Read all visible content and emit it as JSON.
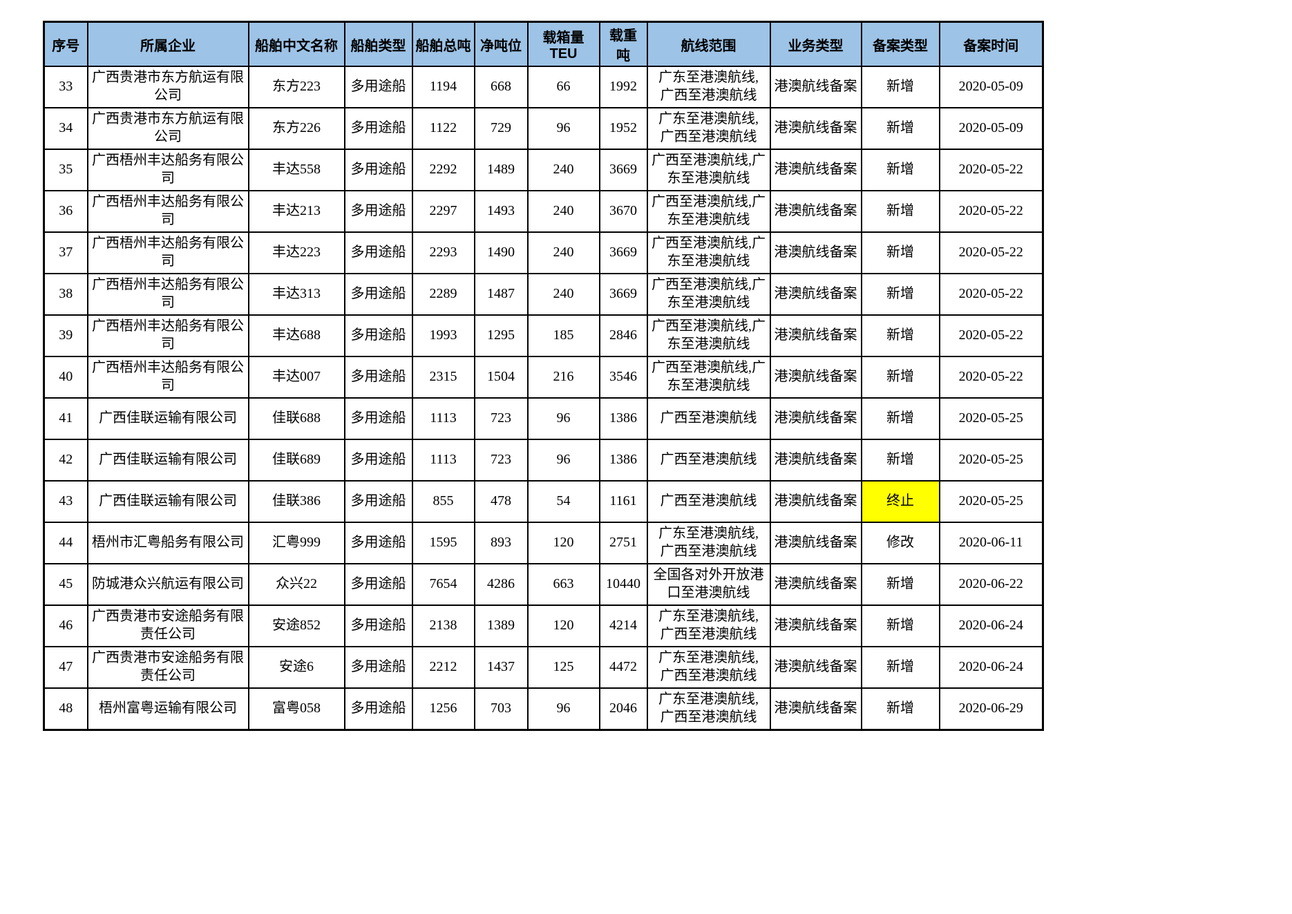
{
  "colors": {
    "header_bg": "#9DC3E6",
    "highlight": "#FFFF00",
    "border": "#000000",
    "text": "#000000"
  },
  "table": {
    "columns": [
      {
        "key": "seq",
        "label": "序号"
      },
      {
        "key": "company",
        "label": "所属企业"
      },
      {
        "key": "ship_name",
        "label": "船舶中文名称"
      },
      {
        "key": "ship_type",
        "label": "船舶类型"
      },
      {
        "key": "gross_tonnage",
        "label": "船舶总吨"
      },
      {
        "key": "net_tonnage",
        "label": "净吨位"
      },
      {
        "key": "teu",
        "label": "载箱量TEU"
      },
      {
        "key": "deadweight",
        "label": "载重吨"
      },
      {
        "key": "route",
        "label": "航线范围"
      },
      {
        "key": "business_type",
        "label": "业务类型"
      },
      {
        "key": "filing_type",
        "label": "备案类型"
      },
      {
        "key": "filing_date",
        "label": "备案时间"
      }
    ],
    "rows": [
      {
        "seq": "33",
        "company": "广西贵港市东方航运有限\n公司",
        "ship_name": "东方223",
        "ship_type": "多用途船",
        "gross_tonnage": "1194",
        "net_tonnage": "668",
        "teu": "66",
        "deadweight": "1992",
        "route": "广东至港澳航线,\n广西至港澳航线",
        "business_type": "港澳航线备案",
        "filing_type": "新增",
        "filing_type_highlight": false,
        "filing_date": "2020-05-09"
      },
      {
        "seq": "34",
        "company": "广西贵港市东方航运有限\n公司",
        "ship_name": "东方226",
        "ship_type": "多用途船",
        "gross_tonnage": "1122",
        "net_tonnage": "729",
        "teu": "96",
        "deadweight": "1952",
        "route": "广东至港澳航线,\n广西至港澳航线",
        "business_type": "港澳航线备案",
        "filing_type": "新增",
        "filing_type_highlight": false,
        "filing_date": "2020-05-09"
      },
      {
        "seq": "35",
        "company": "广西梧州丰达船务有限公\n司",
        "ship_name": "丰达558",
        "ship_type": "多用途船",
        "gross_tonnage": "2292",
        "net_tonnage": "1489",
        "teu": "240",
        "deadweight": "3669",
        "route": "广西至港澳航线,广\n东至港澳航线",
        "business_type": "港澳航线备案",
        "filing_type": "新增",
        "filing_type_highlight": false,
        "filing_date": "2020-05-22"
      },
      {
        "seq": "36",
        "company": "广西梧州丰达船务有限公\n司",
        "ship_name": "丰达213",
        "ship_type": "多用途船",
        "gross_tonnage": "2297",
        "net_tonnage": "1493",
        "teu": "240",
        "deadweight": "3670",
        "route": "广西至港澳航线,广\n东至港澳航线",
        "business_type": "港澳航线备案",
        "filing_type": "新增",
        "filing_type_highlight": false,
        "filing_date": "2020-05-22"
      },
      {
        "seq": "37",
        "company": "广西梧州丰达船务有限公\n司",
        "ship_name": "丰达223",
        "ship_type": "多用途船",
        "gross_tonnage": "2293",
        "net_tonnage": "1490",
        "teu": "240",
        "deadweight": "3669",
        "route": "广西至港澳航线,广\n东至港澳航线",
        "business_type": "港澳航线备案",
        "filing_type": "新增",
        "filing_type_highlight": false,
        "filing_date": "2020-05-22"
      },
      {
        "seq": "38",
        "company": "广西梧州丰达船务有限公\n司",
        "ship_name": "丰达313",
        "ship_type": "多用途船",
        "gross_tonnage": "2289",
        "net_tonnage": "1487",
        "teu": "240",
        "deadweight": "3669",
        "route": "广西至港澳航线,广\n东至港澳航线",
        "business_type": "港澳航线备案",
        "filing_type": "新增",
        "filing_type_highlight": false,
        "filing_date": "2020-05-22"
      },
      {
        "seq": "39",
        "company": "广西梧州丰达船务有限公\n司",
        "ship_name": "丰达688",
        "ship_type": "多用途船",
        "gross_tonnage": "1993",
        "net_tonnage": "1295",
        "teu": "185",
        "deadweight": "2846",
        "route": "广西至港澳航线,广\n东至港澳航线",
        "business_type": "港澳航线备案",
        "filing_type": "新增",
        "filing_type_highlight": false,
        "filing_date": "2020-05-22"
      },
      {
        "seq": "40",
        "company": "广西梧州丰达船务有限公\n司",
        "ship_name": "丰达007",
        "ship_type": "多用途船",
        "gross_tonnage": "2315",
        "net_tonnage": "1504",
        "teu": "216",
        "deadweight": "3546",
        "route": "广西至港澳航线,广\n东至港澳航线",
        "business_type": "港澳航线备案",
        "filing_type": "新增",
        "filing_type_highlight": false,
        "filing_date": "2020-05-22"
      },
      {
        "seq": "41",
        "company": "广西佳联运输有限公司",
        "ship_name": "佳联688",
        "ship_type": "多用途船",
        "gross_tonnage": "1113",
        "net_tonnage": "723",
        "teu": "96",
        "deadweight": "1386",
        "route": "广西至港澳航线",
        "business_type": "港澳航线备案",
        "filing_type": "新增",
        "filing_type_highlight": false,
        "filing_date": "2020-05-25"
      },
      {
        "seq": "42",
        "company": "广西佳联运输有限公司",
        "ship_name": "佳联689",
        "ship_type": "多用途船",
        "gross_tonnage": "1113",
        "net_tonnage": "723",
        "teu": "96",
        "deadweight": "1386",
        "route": "广西至港澳航线",
        "business_type": "港澳航线备案",
        "filing_type": "新增",
        "filing_type_highlight": false,
        "filing_date": "2020-05-25"
      },
      {
        "seq": "43",
        "company": "广西佳联运输有限公司",
        "ship_name": "佳联386",
        "ship_type": "多用途船",
        "gross_tonnage": "855",
        "net_tonnage": "478",
        "teu": "54",
        "deadweight": "1161",
        "route": "广西至港澳航线",
        "business_type": "港澳航线备案",
        "filing_type": "终止",
        "filing_type_highlight": true,
        "filing_date": "2020-05-25"
      },
      {
        "seq": "44",
        "company": "梧州市汇粤船务有限公司",
        "ship_name": "汇粤999",
        "ship_type": "多用途船",
        "gross_tonnage": "1595",
        "net_tonnage": "893",
        "teu": "120",
        "deadweight": "2751",
        "route": "广东至港澳航线,\n广西至港澳航线",
        "business_type": "港澳航线备案",
        "filing_type": "修改",
        "filing_type_highlight": false,
        "filing_date": "2020-06-11"
      },
      {
        "seq": "45",
        "company": "防城港众兴航运有限公司",
        "ship_name": "众兴22",
        "ship_type": "多用途船",
        "gross_tonnage": "7654",
        "net_tonnage": "4286",
        "teu": "663",
        "deadweight": "10440",
        "route": "全国各对外开放港\n口至港澳航线",
        "business_type": "港澳航线备案",
        "filing_type": "新增",
        "filing_type_highlight": false,
        "filing_date": "2020-06-22"
      },
      {
        "seq": "46",
        "company": "广西贵港市安途船务有限\n责任公司",
        "ship_name": "安途852",
        "ship_type": "多用途船",
        "gross_tonnage": "2138",
        "net_tonnage": "1389",
        "teu": "120",
        "deadweight": "4214",
        "route": "广东至港澳航线,\n广西至港澳航线",
        "business_type": "港澳航线备案",
        "filing_type": "新增",
        "filing_type_highlight": false,
        "filing_date": "2020-06-24"
      },
      {
        "seq": "47",
        "company": "广西贵港市安途船务有限\n责任公司",
        "ship_name": "安途6",
        "ship_type": "多用途船",
        "gross_tonnage": "2212",
        "net_tonnage": "1437",
        "teu": "125",
        "deadweight": "4472",
        "route": "广东至港澳航线,\n广西至港澳航线",
        "business_type": "港澳航线备案",
        "filing_type": "新增",
        "filing_type_highlight": false,
        "filing_date": "2020-06-24"
      },
      {
        "seq": "48",
        "company": "梧州富粤运输有限公司",
        "ship_name": "富粤058",
        "ship_type": "多用途船",
        "gross_tonnage": "1256",
        "net_tonnage": "703",
        "teu": "96",
        "deadweight": "2046",
        "route": "广东至港澳航线,\n广西至港澳航线",
        "business_type": "港澳航线备案",
        "filing_type": "新增",
        "filing_type_highlight": false,
        "filing_date": "2020-06-29"
      }
    ]
  }
}
